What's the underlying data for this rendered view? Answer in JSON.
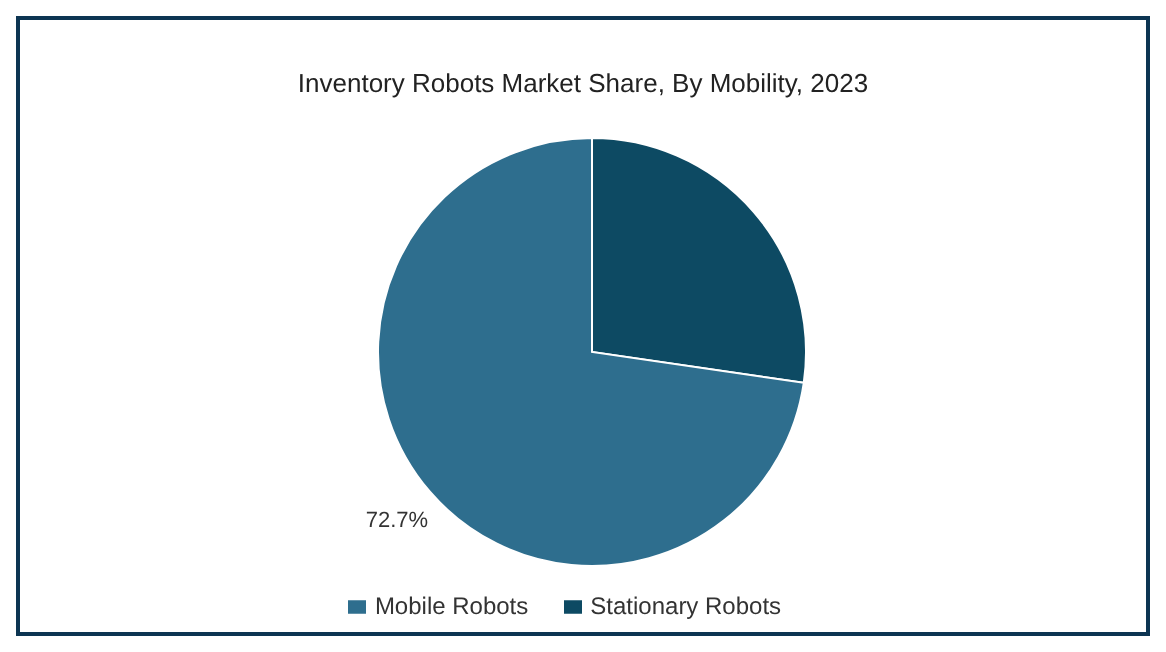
{
  "chart_data": {
    "type": "pie",
    "title": "Inventory Robots Market Share, By Mobility, 2023",
    "categories": [
      "Stationary Robots",
      "Mobile Robots"
    ],
    "values": [
      27.3,
      72.7
    ],
    "colors": [
      "#0d4a63",
      "#2e6e8e"
    ],
    "value_labels": [
      null,
      "72.7%"
    ],
    "legend": "bottom"
  }
}
